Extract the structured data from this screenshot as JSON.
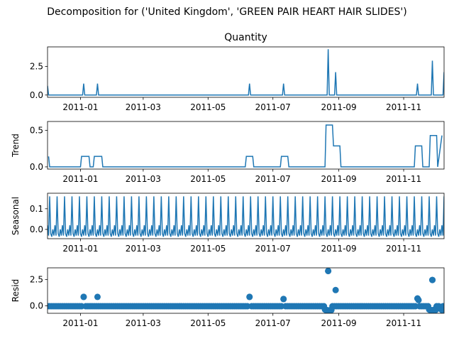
{
  "figure": {
    "suptitle": "Decomposition for ('United Kingdom', 'GREEN PAIR HEART HAIR SLIDES')"
  },
  "chart_data": [
    {
      "type": "line",
      "title": "Quantity",
      "ylabel": "",
      "xlim": [
        "2011-12-01",
        "2011-12-09"
      ],
      "x_start": "2010-12-01",
      "x_end": "2011-12-09",
      "ylim": [
        -0.2,
        4.2
      ],
      "yticks": [
        0.0,
        2.5
      ],
      "ytick_labels": [
        "0.0",
        "2.5"
      ],
      "xtick_labels": [
        "2011-01",
        "2011-03",
        "2011-05",
        "2011-07",
        "2011-09",
        "2011-11"
      ],
      "xtick_dates": [
        "2011-01-01",
        "2011-03-01",
        "2011-05-01",
        "2011-07-01",
        "2011-09-01",
        "2011-11-01"
      ],
      "baseline": 0,
      "spikes": [
        {
          "date": "2010-12-01",
          "value": 0.8
        },
        {
          "date": "2011-01-04",
          "value": 1
        },
        {
          "date": "2011-01-17",
          "value": 1
        },
        {
          "date": "2011-06-09",
          "value": 1
        },
        {
          "date": "2011-07-11",
          "value": 1
        },
        {
          "date": "2011-08-22",
          "value": 4
        },
        {
          "date": "2011-08-29",
          "value": 2
        },
        {
          "date": "2011-11-14",
          "value": 1
        },
        {
          "date": "2011-11-28",
          "value": 3
        },
        {
          "date": "2011-12-09",
          "value": 2
        }
      ]
    },
    {
      "type": "line",
      "title": "",
      "ylabel": "Trend",
      "ylim": [
        -0.03,
        0.62
      ],
      "yticks": [
        0.0,
        0.5
      ],
      "ytick_labels": [
        "0.0",
        "0.5"
      ],
      "xtick_labels": [
        "2011-01",
        "2011-03",
        "2011-05",
        "2011-07",
        "2011-09",
        "2011-11"
      ],
      "xtick_dates": [
        "2011-01-01",
        "2011-03-01",
        "2011-05-01",
        "2011-07-01",
        "2011-09-01",
        "2011-11-01"
      ],
      "steps": [
        {
          "date": "2010-12-02",
          "value": 0.143
        },
        {
          "date": "2010-12-03",
          "value": 0
        },
        {
          "date": "2011-01-01",
          "value": 0
        },
        {
          "date": "2011-01-02",
          "value": 0.143
        },
        {
          "date": "2011-01-09",
          "value": 0.143
        },
        {
          "date": "2011-01-10",
          "value": 0
        },
        {
          "date": "2011-01-13",
          "value": 0
        },
        {
          "date": "2011-01-14",
          "value": 0.143
        },
        {
          "date": "2011-01-21",
          "value": 0.143
        },
        {
          "date": "2011-01-22",
          "value": 0
        },
        {
          "date": "2011-06-05",
          "value": 0
        },
        {
          "date": "2011-06-06",
          "value": 0.143
        },
        {
          "date": "2011-06-12",
          "value": 0.143
        },
        {
          "date": "2011-06-13",
          "value": 0
        },
        {
          "date": "2011-07-08",
          "value": 0
        },
        {
          "date": "2011-07-09",
          "value": 0.143
        },
        {
          "date": "2011-07-15",
          "value": 0.143
        },
        {
          "date": "2011-07-16",
          "value": 0
        },
        {
          "date": "2011-08-19",
          "value": 0
        },
        {
          "date": "2011-08-20",
          "value": 0.571
        },
        {
          "date": "2011-08-26",
          "value": 0.571
        },
        {
          "date": "2011-08-27",
          "value": 0.286
        },
        {
          "date": "2011-09-02",
          "value": 0.286
        },
        {
          "date": "2011-09-03",
          "value": 0
        },
        {
          "date": "2011-11-11",
          "value": 0
        },
        {
          "date": "2011-11-12",
          "value": 0.286
        },
        {
          "date": "2011-11-18",
          "value": 0.286
        },
        {
          "date": "2011-11-19",
          "value": 0
        },
        {
          "date": "2011-11-25",
          "value": 0
        },
        {
          "date": "2011-11-26",
          "value": 0.429
        },
        {
          "date": "2011-12-02",
          "value": 0.429
        },
        {
          "date": "2011-12-03",
          "value": 0
        },
        {
          "date": "2011-12-07",
          "value": 0.429
        }
      ]
    },
    {
      "type": "line",
      "title": "",
      "ylabel": "Seasonal",
      "ylim": [
        -0.045,
        0.175
      ],
      "yticks": [
        0.0,
        0.1
      ],
      "ytick_labels": [
        "0.0",
        "0.1"
      ],
      "xtick_labels": [
        "2011-01",
        "2011-03",
        "2011-05",
        "2011-07",
        "2011-09",
        "2011-11"
      ],
      "xtick_dates": [
        "2011-01-01",
        "2011-03-01",
        "2011-05-01",
        "2011-07-01",
        "2011-09-01",
        "2011-11-01"
      ],
      "period_days": 7,
      "weekly_pattern": [
        0.16,
        -0.02,
        -0.035,
        0.0,
        -0.03,
        0.02,
        -0.03
      ]
    },
    {
      "type": "scatter",
      "title": "",
      "ylabel": "Resid",
      "ylim": [
        -0.7,
        3.6
      ],
      "yticks": [
        0.0,
        2.5
      ],
      "ytick_labels": [
        "0.0",
        "2.5"
      ],
      "xtick_labels": [
        "2011-01",
        "2011-03",
        "2011-05",
        "2011-07",
        "2011-09",
        "2011-11"
      ],
      "xtick_dates": [
        "2011-01-01",
        "2011-03-01",
        "2011-05-01",
        "2011-07-01",
        "2011-09-01",
        "2011-11-01"
      ],
      "baseline_value": -0.03,
      "outliers": [
        {
          "date": "2011-01-04",
          "value": 0.85
        },
        {
          "date": "2011-01-17",
          "value": 0.85
        },
        {
          "date": "2011-06-09",
          "value": 0.85
        },
        {
          "date": "2011-07-11",
          "value": 0.65
        },
        {
          "date": "2011-08-22",
          "value": 3.3
        },
        {
          "date": "2011-08-29",
          "value": 1.5
        },
        {
          "date": "2011-11-14",
          "value": 0.7
        },
        {
          "date": "2011-11-15",
          "value": 0.55
        },
        {
          "date": "2011-11-28",
          "value": 2.45
        },
        {
          "date": "2011-08-19",
          "value": -0.35
        },
        {
          "date": "2011-08-20",
          "value": -0.4
        },
        {
          "date": "2011-08-21",
          "value": -0.4
        },
        {
          "date": "2011-08-23",
          "value": -0.45
        },
        {
          "date": "2011-08-24",
          "value": -0.4
        },
        {
          "date": "2011-08-25",
          "value": -0.4
        },
        {
          "date": "2011-11-25",
          "value": -0.35
        },
        {
          "date": "2011-11-26",
          "value": -0.4
        },
        {
          "date": "2011-11-27",
          "value": -0.4
        },
        {
          "date": "2011-11-29",
          "value": -0.4
        },
        {
          "date": "2011-11-30",
          "value": -0.35
        },
        {
          "date": "2011-12-01",
          "value": -0.4
        },
        {
          "date": "2011-12-05",
          "value": -0.2
        },
        {
          "date": "2011-12-06",
          "value": -0.3
        },
        {
          "date": "2011-12-07",
          "value": -0.4
        }
      ]
    }
  ],
  "style": {
    "line_color": "#1f77b4",
    "axis_color": "#000000"
  }
}
